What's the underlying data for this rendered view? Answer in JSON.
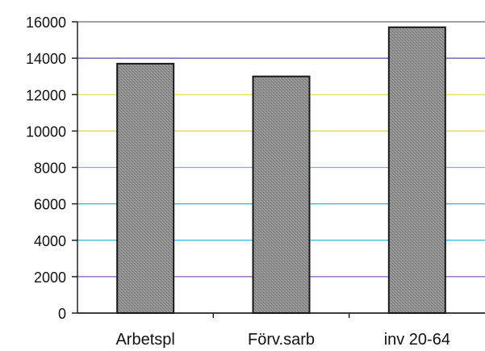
{
  "chart_data": {
    "type": "bar",
    "categories": [
      "Arbetspl",
      "Förv.sarb",
      "inv 20-64"
    ],
    "values": [
      13700,
      13000,
      15700
    ],
    "title": "",
    "xlabel": "",
    "ylabel": "",
    "ylim": [
      0,
      16000
    ],
    "yticks": [
      0,
      2000,
      4000,
      6000,
      8000,
      10000,
      12000,
      14000,
      16000
    ],
    "grid": true,
    "gridline_colors": [
      "#3a3a3a",
      "#8a5bb8",
      "#31b8c8",
      "#31b8c8",
      "#7fb0c8",
      "#d8d84a",
      "#e4e048",
      "#5a4aa8",
      "#6a6a6a"
    ],
    "bar_color": "#8f8f8f",
    "legend": "none"
  }
}
